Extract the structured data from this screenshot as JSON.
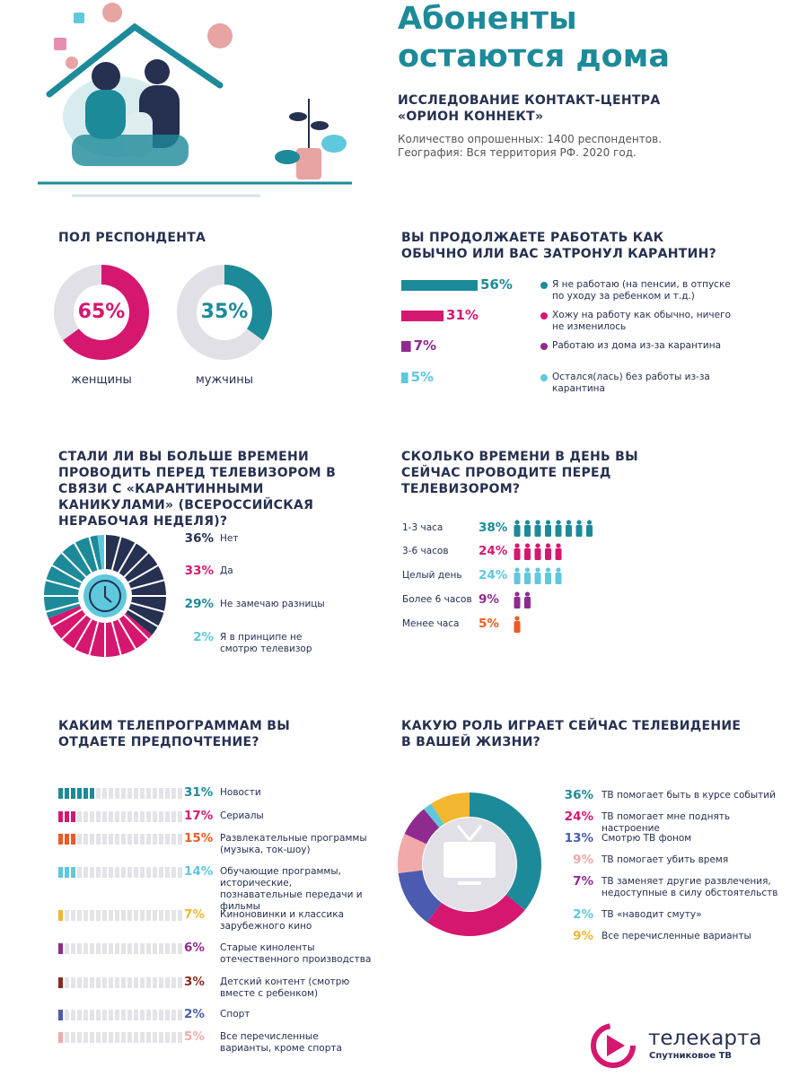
{
  "header": {
    "title": "Абоненты остаются дома",
    "subtitle": "ИССЛЕДОВАНИЕ КОНТАКТ-ЦЕНТРА «ОРИОН КОННЕКТ»",
    "notes": [
      "Количество опрошенных: 1400  респондентов.",
      "География: Вся территория РФ. 2020 год."
    ]
  },
  "chart_data": [
    {
      "type": "donut-pair",
      "title": "ПОЛ РЕСПОНДЕНТА",
      "categories": [
        "женщины",
        "мужчины"
      ],
      "values": [
        65,
        35
      ],
      "value_labels": [
        "65%",
        "35%"
      ],
      "colors": [
        "#d6176f",
        "#1d8a99"
      ]
    },
    {
      "type": "hbar",
      "title": "ВЫ ПРОДОЛЖАЕТЕ РАБОТАТЬ КАК ОБЫЧНО ИЛИ ВАС ЗАТРОНУЛ КАРАНТИН?",
      "categories": [
        "Я  не работаю (на пенсии, в отпуске по уходу за ребенком и т.д.)",
        "Хожу на работу как обычно, ничего не изменилось",
        "Работаю из дома из-за карантина",
        "Остался(лась) без работы из-за карантина"
      ],
      "values": [
        56,
        31,
        7,
        5
      ],
      "value_labels": [
        "56%",
        "31%",
        "7%",
        "5%"
      ],
      "colors": [
        "#1d8a99",
        "#d6176f",
        "#8e2b8f",
        "#5ec8dd"
      ]
    },
    {
      "type": "segment-ring",
      "title": "СТАЛИ ЛИ ВЫ БОЛЬШЕ ВРЕМЕНИ ПРОВОДИТЬ ПЕРЕД ТЕЛЕВИЗОРОМ В СВЯЗИ С «КАРАНТИННЫМИ КАНИКУЛАМИ» (ВСЕРОССИЙСКАЯ НЕРАБОЧАЯ НЕДЕЛЯ)?",
      "categories": [
        "Нет",
        "Да",
        "Не замечаю разницы",
        "Я в принципе не смотрю телевизор"
      ],
      "values": [
        36,
        33,
        29,
        2
      ],
      "value_labels": [
        "36%",
        "33%",
        "29%",
        "2%"
      ],
      "colors": [
        "#263050",
        "#d6176f",
        "#1d8a99",
        "#5ec8dd"
      ]
    },
    {
      "type": "icon-bar",
      "title": "СКОЛЬКО ВРЕМЕНИ В ДЕНЬ ВЫ СЕЙЧАС ПРОВОДИТЕ ПЕРЕД ТЕЛЕВИЗОРОМ?",
      "categories": [
        "1-3 часа",
        "3-6 часов",
        "Целый день",
        "Более 6 часов",
        "Менее часа"
      ],
      "values": [
        38,
        24,
        24,
        9,
        5
      ],
      "value_labels": [
        "38%",
        "24%",
        "24%",
        "9%",
        "5%"
      ],
      "colors": [
        "#1d8a99",
        "#d6176f",
        "#5ec8dd",
        "#8e2b8f",
        "#f05a22"
      ]
    },
    {
      "type": "segmented-bar",
      "title": "КАКИМ ТЕЛЕПРОГРАММАМ ВЫ ОТДАЕТЕ ПРЕДПОЧТЕНИЕ?",
      "categories": [
        "Новости",
        "Сериалы",
        "Развлекательные программы (музыка, ток-шоу)",
        "Обучающие программы, исторические, познавательные передачи и фильмы",
        "Киноновинки и классика зарубежного кино",
        "Старые киноленты отечественного производства",
        "Детский контент (смотрю вместе с ребенком)",
        "Спорт",
        "Все перечисленные варианты, кроме спорта"
      ],
      "values": [
        31,
        17,
        15,
        14,
        7,
        6,
        3,
        2,
        5
      ],
      "value_labels": [
        "31%",
        "17%",
        "15%",
        "14%",
        "7%",
        "6%",
        "3%",
        "2%",
        "5%"
      ],
      "colors": [
        "#1d8a99",
        "#d6176f",
        "#f05a22",
        "#5ec8dd",
        "#f2b630",
        "#8e2b8f",
        "#8b2a1f",
        "#4a5bb0",
        "#f0a8a8"
      ]
    },
    {
      "type": "donut",
      "title": "КАКУЮ РОЛЬ ИГРАЕТ СЕЙЧАС ТЕЛЕВИДЕНИЕ В ВАШЕЙ ЖИЗНИ?",
      "categories": [
        "ТВ помогает быть в курсе событий",
        "ТВ помогает мне  поднять настроение",
        "Смотрю ТВ фоном",
        "ТВ помогает убить время",
        "ТВ заменяет другие развлечения, недоступные в силу обстоятельств",
        "ТВ «наводит смуту»",
        "Все перечисленные варианты"
      ],
      "values": [
        36,
        24,
        13,
        9,
        7,
        2,
        9
      ],
      "value_labels": [
        "36%",
        "24%",
        "13%",
        "9%",
        "7%",
        "2%",
        "9%"
      ],
      "colors": [
        "#1d8a99",
        "#d6176f",
        "#4a5bb0",
        "#f0a8a8",
        "#8e2b8f",
        "#5ec8dd",
        "#f2b630"
      ]
    }
  ],
  "logo": {
    "name": "телекарта",
    "tagline": "Спутниковое ТВ"
  }
}
